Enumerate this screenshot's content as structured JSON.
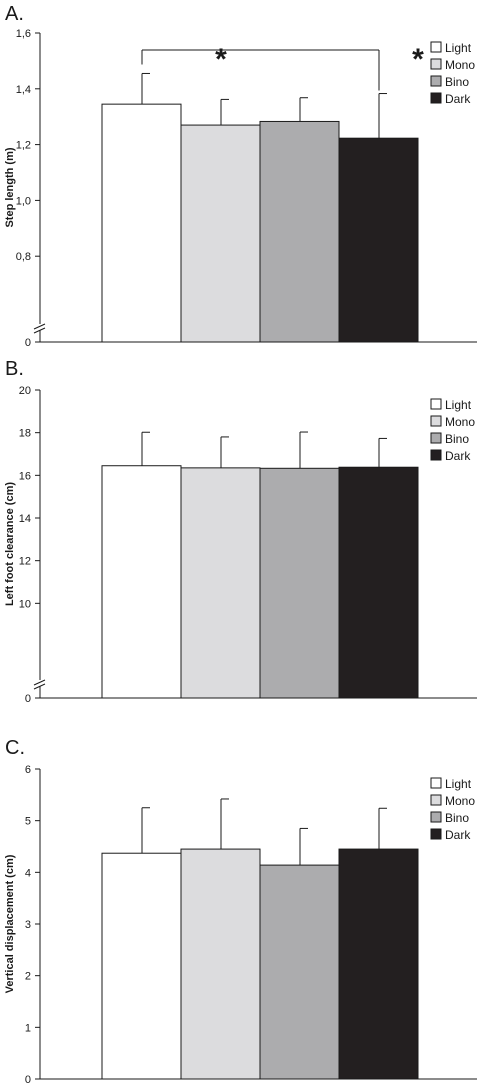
{
  "chart_data": [
    {
      "type": "bar",
      "panel_label": "A.",
      "ylabel": "Step length (m)",
      "categories": [
        "Light",
        "Mono",
        "Bino",
        "Dark"
      ],
      "values": [
        1.345,
        1.27,
        1.283,
        1.223
      ],
      "errors": [
        0.11,
        0.092,
        0.085,
        0.16
      ],
      "ylim": [
        0.6,
        1.6
      ],
      "yticks": [
        "0",
        "0,8",
        "1,0",
        "1,2",
        "1,4",
        "1,6"
      ],
      "ytick_values": [
        0.6,
        0.8,
        1.0,
        1.2,
        1.4,
        1.6
      ],
      "axis_break": true,
      "legend": [
        "Light",
        "Mono",
        "Bino",
        "Dark"
      ],
      "legend_position": "top-right",
      "significance": {
        "from": "Light",
        "to": "Dark",
        "via": "Mono",
        "markers": [
          "*",
          "*"
        ]
      }
    },
    {
      "type": "bar",
      "panel_label": "B.",
      "ylabel": "Left foot clearance (cm)",
      "categories": [
        "Light",
        "Mono",
        "Bino",
        "Dark"
      ],
      "values": [
        16.45,
        16.35,
        16.33,
        16.38
      ],
      "errors": [
        1.57,
        1.45,
        1.7,
        1.35
      ],
      "ylim": [
        8,
        20
      ],
      "yticks": [
        "0",
        "10",
        "12",
        "14",
        "16",
        "18",
        "20"
      ],
      "ytick_values": [
        8,
        10,
        12,
        14,
        16,
        18,
        20
      ],
      "axis_break": true,
      "legend": [
        "Light",
        "Mono",
        "Bino",
        "Dark"
      ],
      "legend_position": "top-right"
    },
    {
      "type": "bar",
      "panel_label": "C.",
      "ylabel": "Vertical displacement (cm)",
      "categories": [
        "Light",
        "Mono",
        "Bino",
        "Dark"
      ],
      "values": [
        4.37,
        4.45,
        4.14,
        4.45
      ],
      "errors": [
        0.88,
        0.97,
        0.71,
        0.79
      ],
      "ylim": [
        0,
        6
      ],
      "yticks": [
        "0",
        "1",
        "2",
        "3",
        "4",
        "5",
        "6"
      ],
      "ytick_values": [
        0,
        1,
        2,
        3,
        4,
        5,
        6
      ],
      "axis_break": false,
      "legend": [
        "Light",
        "Mono",
        "Bino",
        "Dark"
      ],
      "legend_position": "top-right"
    }
  ],
  "colors": {
    "Light": "#ffffff",
    "Mono": "#dcdcde",
    "Bino": "#acacae",
    "Dark": "#231f20",
    "axis": "#1a1a1a"
  }
}
